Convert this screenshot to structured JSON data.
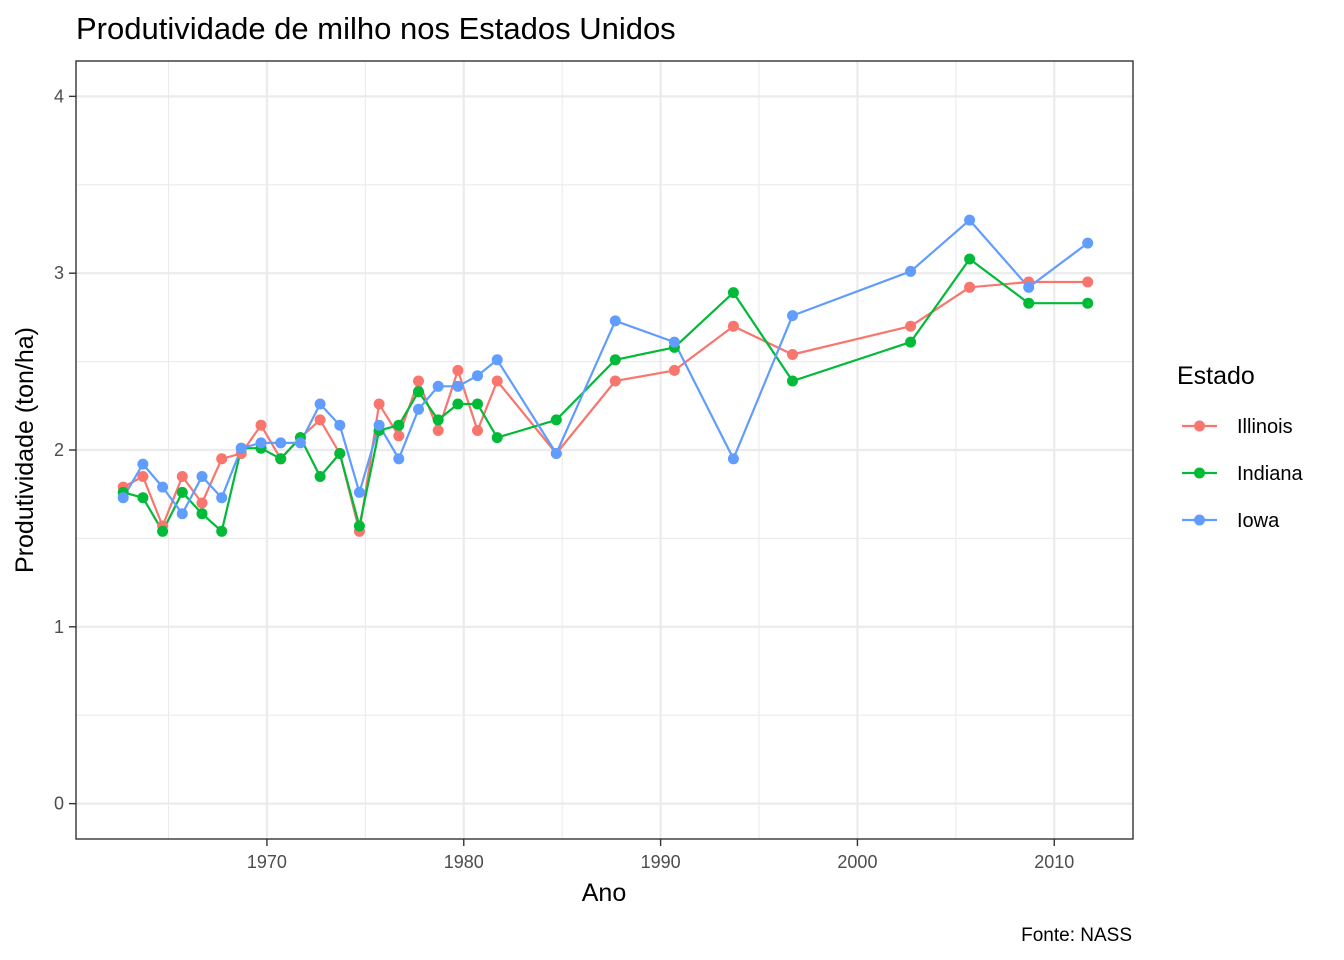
{
  "chart_data": {
    "type": "line",
    "title": "Produtividade de milho nos Estados Unidos",
    "xlabel": "Ano",
    "ylabel": "Produtividade (ton/ha)",
    "caption": "Fonte: NASS",
    "xlim": [
      1960.3,
      2014.0
    ],
    "ylim": [
      -0.2,
      4.2
    ],
    "x_ticks": [
      1970,
      1980,
      1990,
      2000,
      2010
    ],
    "x_tick_labels": [
      "1970",
      "1980",
      "1990",
      "2000",
      "2010"
    ],
    "y_ticks": [
      0,
      1,
      2,
      3,
      4
    ],
    "y_tick_labels": [
      "0",
      "1",
      "2",
      "3",
      "4"
    ],
    "grid": true,
    "legend": {
      "title": "Estado",
      "position": "right"
    },
    "series": [
      {
        "name": "Illinois",
        "color": "#F8766D",
        "x": [
          1962.7,
          1963.7,
          1964.7,
          1965.7,
          1966.7,
          1967.7,
          1968.7,
          1969.7,
          1970.7,
          1971.7,
          1972.7,
          1973.7,
          1974.7,
          1975.7,
          1976.7,
          1977.7,
          1978.7,
          1979.7,
          1980.7,
          1981.7,
          1984.7,
          1987.7,
          1990.7,
          1993.7,
          1996.7,
          2002.7,
          2005.7,
          2008.7,
          2011.7
        ],
        "y": [
          1.79,
          1.85,
          1.57,
          1.85,
          1.7,
          1.95,
          1.98,
          2.14,
          1.95,
          2.07,
          2.17,
          1.98,
          1.54,
          2.26,
          2.08,
          2.39,
          2.11,
          2.45,
          2.11,
          2.39,
          1.98,
          2.39,
          2.45,
          2.7,
          2.54,
          2.7,
          2.92,
          2.95,
          2.95
        ]
      },
      {
        "name": "Indiana",
        "color": "#00BA38",
        "x": [
          1962.7,
          1963.7,
          1964.7,
          1965.7,
          1966.7,
          1967.7,
          1968.7,
          1969.7,
          1970.7,
          1971.7,
          1972.7,
          1973.7,
          1974.7,
          1975.7,
          1976.7,
          1977.7,
          1978.7,
          1979.7,
          1980.7,
          1981.7,
          1984.7,
          1987.7,
          1990.7,
          1993.7,
          1996.7,
          2002.7,
          2005.7,
          2008.7,
          2011.7
        ],
        "y": [
          1.76,
          1.73,
          1.54,
          1.76,
          1.64,
          1.54,
          2.01,
          2.01,
          1.95,
          2.07,
          1.85,
          1.98,
          1.57,
          2.11,
          2.14,
          2.33,
          2.17,
          2.26,
          2.26,
          2.07,
          2.17,
          2.51,
          2.58,
          2.89,
          2.39,
          2.61,
          3.08,
          2.83,
          2.83
        ]
      },
      {
        "name": "Iowa",
        "color": "#619CFF",
        "x": [
          1962.7,
          1963.7,
          1964.7,
          1965.7,
          1966.7,
          1967.7,
          1968.7,
          1969.7,
          1970.7,
          1971.7,
          1972.7,
          1973.7,
          1974.7,
          1975.7,
          1976.7,
          1977.7,
          1978.7,
          1979.7,
          1980.7,
          1981.7,
          1984.7,
          1987.7,
          1990.7,
          1993.7,
          1996.7,
          2002.7,
          2005.7,
          2008.7,
          2011.7
        ],
        "y": [
          1.73,
          1.92,
          1.79,
          1.64,
          1.85,
          1.73,
          2.01,
          2.04,
          2.04,
          2.04,
          2.26,
          2.14,
          1.76,
          2.14,
          1.95,
          2.23,
          2.36,
          2.36,
          2.42,
          2.51,
          1.98,
          2.73,
          2.61,
          1.95,
          2.76,
          3.01,
          3.3,
          2.92,
          3.17
        ]
      }
    ]
  }
}
